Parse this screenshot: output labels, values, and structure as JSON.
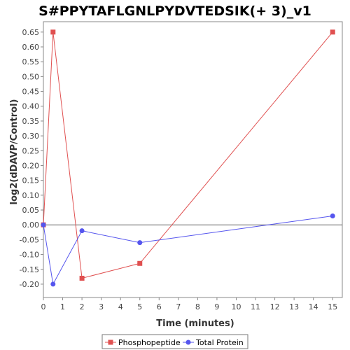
{
  "chart_data": {
    "type": "line",
    "title": "S#PPYTAFLGNLPYDVTEDSIK(+ 3)_v1",
    "xlabel": "Time (minutes)",
    "ylabel": "log2(dDAVP/Control)",
    "xlim": [
      0,
      15.5
    ],
    "ylim": [
      -0.245,
      0.685
    ],
    "x_ticks": [
      0,
      1,
      2,
      3,
      4,
      5,
      6,
      7,
      8,
      9,
      10,
      11,
      12,
      13,
      14,
      15
    ],
    "y_ticks": [
      -0.2,
      -0.15,
      -0.1,
      -0.05,
      0.0,
      0.05,
      0.1,
      0.15,
      0.2,
      0.25,
      0.3,
      0.35,
      0.4,
      0.45,
      0.5,
      0.55,
      0.6,
      0.65
    ],
    "grid": false,
    "zero_line": true,
    "legend_position": "bottom",
    "series": [
      {
        "name": "Phosphopeptide",
        "color": "#e05050",
        "marker": "square",
        "x": [
          0,
          0.5,
          2,
          5,
          15
        ],
        "y": [
          0.0,
          0.65,
          -0.18,
          -0.13,
          0.65
        ]
      },
      {
        "name": "Total Protein",
        "color": "#5555ee",
        "marker": "circle",
        "x": [
          0,
          0.5,
          2,
          5,
          15
        ],
        "y": [
          0.0,
          -0.2,
          -0.02,
          -0.06,
          0.03
        ]
      }
    ]
  }
}
